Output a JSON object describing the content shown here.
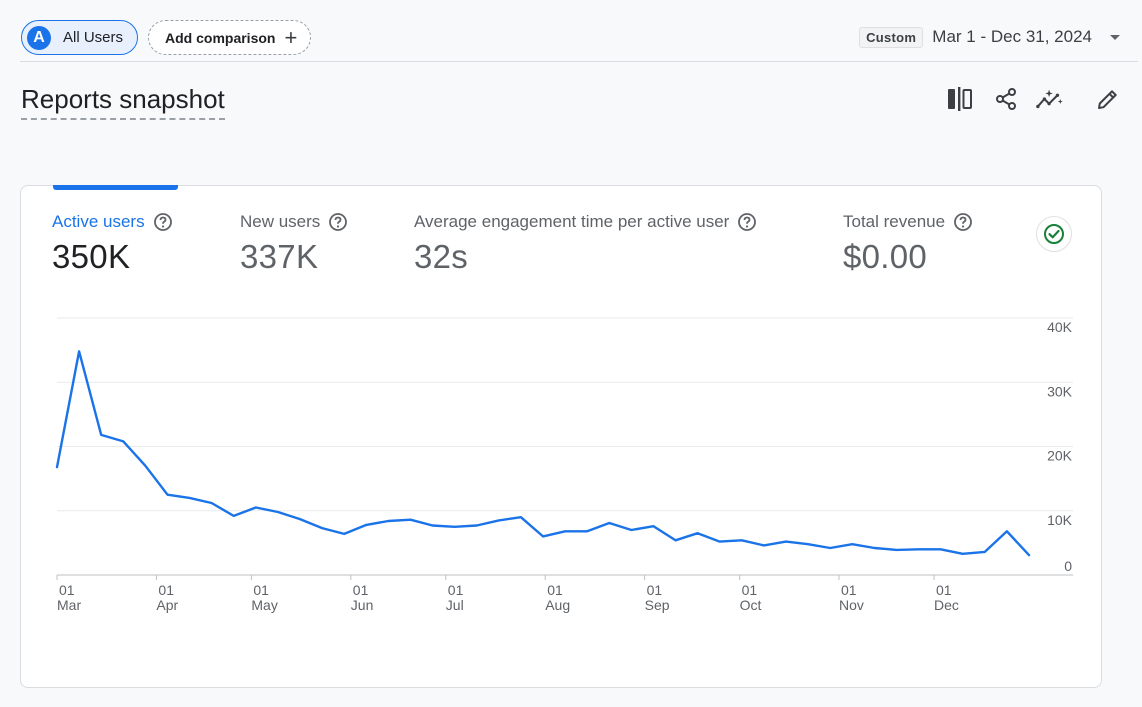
{
  "header": {
    "segment_initial": "A",
    "segment_label": "All Users",
    "add_comparison_label": "Add comparison",
    "date_badge": "Custom",
    "date_range": "Mar 1 - Dec 31, 2024"
  },
  "page": {
    "title": "Reports snapshot",
    "toolbar_icons": [
      "compare-view-icon",
      "share-icon",
      "insights-icon",
      "edit-icon"
    ]
  },
  "metrics": [
    {
      "label": "Active users",
      "value": "350K",
      "active": true
    },
    {
      "label": "New users",
      "value": "337K",
      "active": false
    },
    {
      "label": "Average engagement time per active user",
      "value": "32s",
      "active": false
    },
    {
      "label": "Total revenue",
      "value": "$0.00",
      "active": false
    }
  ],
  "colors": {
    "accent": "#1a73e8",
    "line": "#1a73e8",
    "check": "#188038"
  },
  "chart_data": {
    "type": "line",
    "series": [
      {
        "values": [
          16800,
          34800,
          21800,
          20800,
          17000,
          12500,
          12000,
          11200,
          9200,
          10500,
          9800,
          8700,
          7300,
          6400,
          7800,
          8400,
          8600,
          7700,
          7500,
          7700,
          8500,
          9000,
          6000,
          6800,
          6800,
          8100,
          7000,
          7600,
          5400,
          6500,
          5200,
          5400,
          4600,
          5200,
          4800,
          4200,
          4800,
          4200,
          3900,
          4000,
          4000,
          3300,
          3600,
          6800,
          3100
        ]
      }
    ],
    "x_tick_labels": [
      {
        "day": "01",
        "month": "Mar",
        "index": 0
      },
      {
        "day": "01",
        "month": "Apr",
        "index": 4.5
      },
      {
        "day": "01",
        "month": "May",
        "index": 8.8
      },
      {
        "day": "01",
        "month": "Jun",
        "index": 13.3
      },
      {
        "day": "01",
        "month": "Jul",
        "index": 17.6
      },
      {
        "day": "01",
        "month": "Aug",
        "index": 22.1
      },
      {
        "day": "01",
        "month": "Sep",
        "index": 26.6
      },
      {
        "day": "01",
        "month": "Oct",
        "index": 30.9
      },
      {
        "day": "01",
        "month": "Nov",
        "index": 35.4
      },
      {
        "day": "01",
        "month": "Dec",
        "index": 39.7
      }
    ],
    "y_ticks": [
      {
        "value": 0,
        "label": "0"
      },
      {
        "value": 10000,
        "label": "10K"
      },
      {
        "value": 20000,
        "label": "20K"
      },
      {
        "value": 30000,
        "label": "30K"
      },
      {
        "value": 40000,
        "label": "40K"
      }
    ],
    "ylim": [
      0,
      40000
    ],
    "y_axis_position": "right",
    "grid": true
  }
}
